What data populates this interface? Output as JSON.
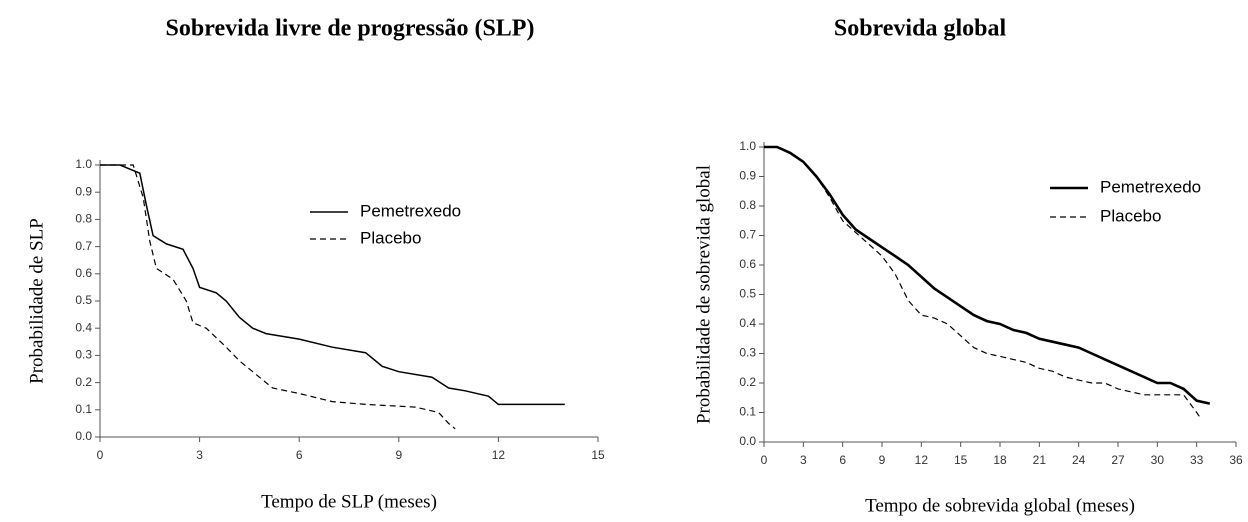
{
  "chart_data": [
    {
      "type": "line",
      "title": "Sobrevida livre de progressão (SLP)",
      "x_label": "Tempo de SLP (meses)",
      "y_label": "Probabilidade de SLP",
      "xlim": [
        0,
        15
      ],
      "xticks": [
        0,
        3,
        6,
        9,
        12,
        15
      ],
      "ylim": [
        0,
        1
      ],
      "yticks": [
        {
          "value": 0,
          "label": "0.0"
        },
        0.1,
        0.2,
        0.3,
        0.4,
        0.5,
        0.6,
        0.7,
        0.8,
        0.9,
        {
          "value": 1,
          "label": "1.0"
        }
      ],
      "legend": "upper right",
      "series": [
        {
          "name": "Pemetrexedo",
          "color": "#000000",
          "dashed": false,
          "line_width": 1.5,
          "x": [
            0,
            0.6,
            1.2,
            1.4,
            1.6,
            2,
            2.5,
            2.8,
            3,
            3.5,
            3.8,
            4.2,
            4.6,
            5,
            6,
            7,
            8,
            8.5,
            9,
            10,
            10.5,
            11,
            11.7,
            12,
            14
          ],
          "values": [
            1.0,
            1.0,
            0.97,
            0.85,
            0.74,
            0.71,
            0.69,
            0.62,
            0.55,
            0.53,
            0.5,
            0.44,
            0.4,
            0.38,
            0.36,
            0.33,
            0.31,
            0.26,
            0.24,
            0.22,
            0.18,
            0.17,
            0.15,
            0.12,
            0.12
          ]
        },
        {
          "name": "Placebo",
          "color": "#000000",
          "dashed": true,
          "line_width": 1.2,
          "x": [
            0,
            1.0,
            1.3,
            1.5,
            1.7,
            2.2,
            2.6,
            2.8,
            3.2,
            3.8,
            4.2,
            4.6,
            5.2,
            6,
            7,
            8,
            9.5,
            10.2,
            10.5,
            10.7
          ],
          "values": [
            1.0,
            1.0,
            0.88,
            0.72,
            0.62,
            0.58,
            0.5,
            0.42,
            0.4,
            0.33,
            0.28,
            0.24,
            0.18,
            0.16,
            0.13,
            0.12,
            0.11,
            0.09,
            0.05,
            0.03
          ]
        }
      ]
    },
    {
      "type": "line",
      "title": "Sobrevida global",
      "x_label": "Tempo de sobrevida global (meses)",
      "y_label": "Probabilidade de sobrevida global",
      "xlim": [
        0,
        36
      ],
      "xticks": [
        0,
        3,
        6,
        9,
        12,
        15,
        18,
        21,
        24,
        27,
        30,
        33,
        36
      ],
      "ylim": [
        0,
        1
      ],
      "yticks": [
        {
          "value": 0,
          "label": "0.0"
        },
        0.1,
        0.2,
        0.3,
        0.4,
        0.5,
        0.6,
        0.7,
        0.8,
        0.9,
        {
          "value": 1,
          "label": "1.0"
        }
      ],
      "legend": "upper right",
      "series": [
        {
          "name": "Pemetrexedo",
          "color": "#000000",
          "dashed": false,
          "line_width": 2.6,
          "x": [
            0,
            1,
            2,
            3,
            4,
            5,
            6,
            7,
            8,
            9,
            10,
            11,
            12,
            13,
            14,
            15,
            16,
            17,
            18,
            19,
            20,
            21,
            22,
            24,
            25,
            26,
            27,
            28,
            29,
            30,
            31,
            32,
            33,
            34
          ],
          "values": [
            1,
            1,
            0.98,
            0.95,
            0.9,
            0.84,
            0.77,
            0.72,
            0.69,
            0.66,
            0.63,
            0.6,
            0.56,
            0.52,
            0.49,
            0.46,
            0.43,
            0.41,
            0.4,
            0.38,
            0.37,
            0.35,
            0.34,
            0.32,
            0.3,
            0.28,
            0.26,
            0.24,
            0.22,
            0.2,
            0.2,
            0.18,
            0.14,
            0.13
          ]
        },
        {
          "name": "Placebo",
          "color": "#000000",
          "dashed": true,
          "line_width": 1.2,
          "x": [
            0,
            1,
            2,
            3,
            4,
            5,
            6,
            7,
            8,
            9,
            10,
            11,
            12,
            13,
            14,
            15,
            16,
            17,
            18,
            19,
            20,
            21,
            22,
            23,
            24,
            25,
            26,
            27,
            28,
            29,
            30,
            32,
            33,
            33.3
          ],
          "values": [
            1,
            1,
            0.98,
            0.95,
            0.9,
            0.83,
            0.75,
            0.71,
            0.67,
            0.63,
            0.57,
            0.48,
            0.43,
            0.42,
            0.4,
            0.36,
            0.32,
            0.3,
            0.29,
            0.28,
            0.27,
            0.25,
            0.24,
            0.22,
            0.21,
            0.2,
            0.2,
            0.18,
            0.17,
            0.16,
            0.16,
            0.16,
            0.1,
            0.08
          ]
        }
      ]
    }
  ]
}
